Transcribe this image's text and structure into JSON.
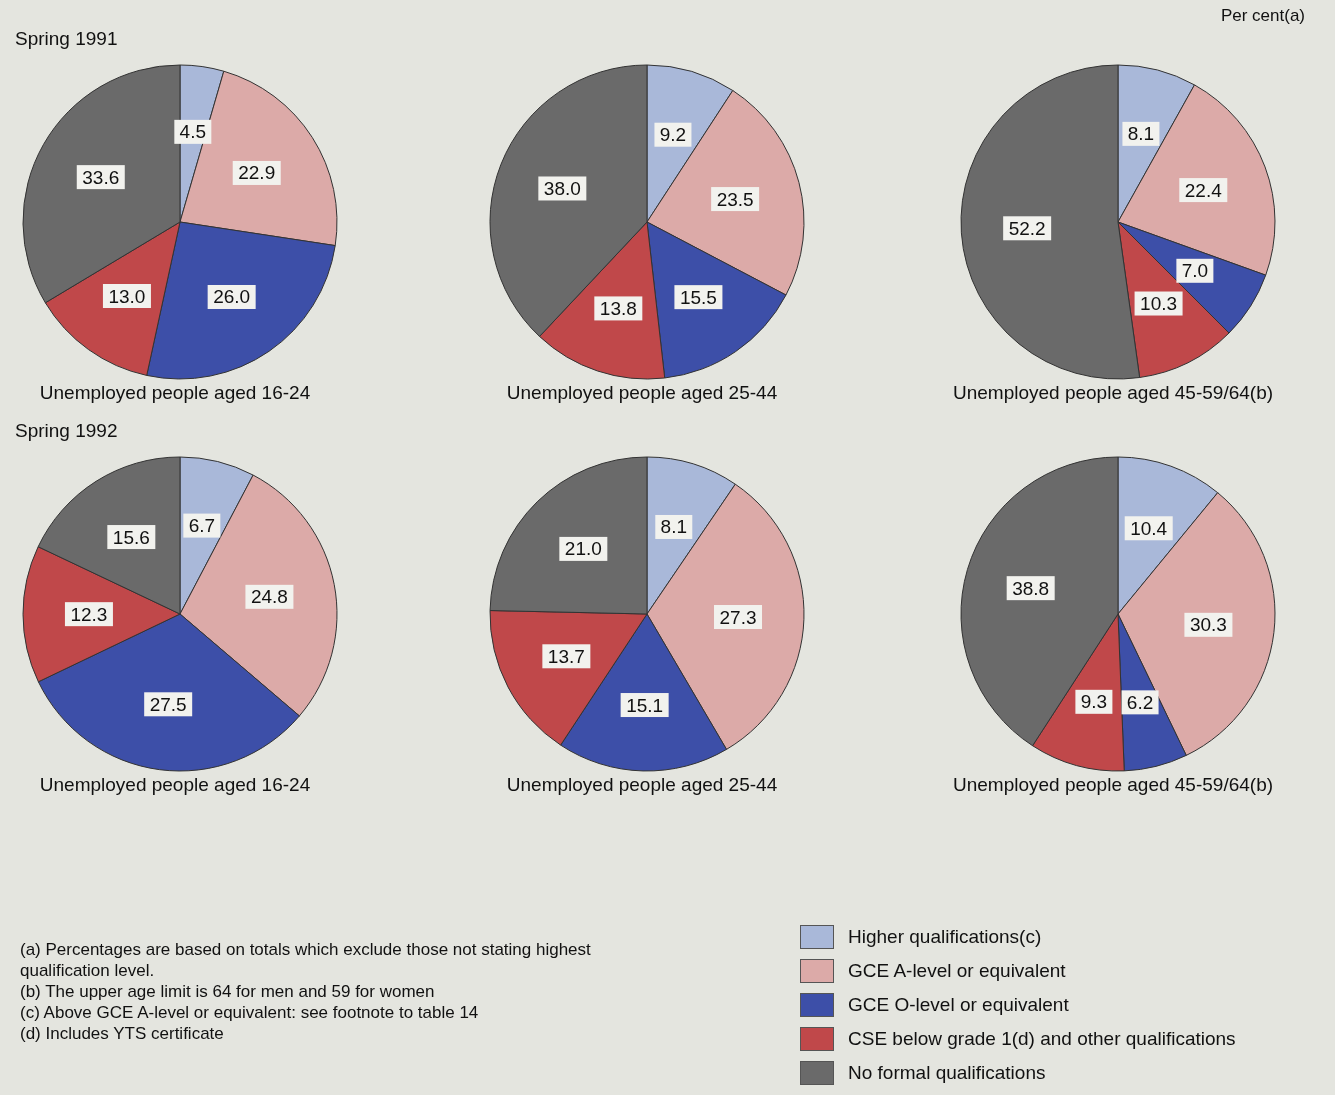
{
  "chart_data": [
    {
      "type": "pie",
      "subtitle": "Spring 1991",
      "title": "Unemployed people aged 16-24",
      "categories": [
        null,
        null,
        null,
        null,
        null
      ],
      "values": [
        4.5,
        22.9,
        26.0,
        13.0,
        33.6
      ],
      "value_labels": [
        "4.5",
        "22.9",
        "26.0",
        "13.0",
        "33.6"
      ],
      "colors": [
        "#a9b8d9",
        "#dcaaa8",
        "#3d4fa8",
        "#c0484a",
        "#6a6a6a"
      ]
    },
    {
      "type": "pie",
      "title": "Unemployed people aged 25-44",
      "categories": [
        null,
        null,
        null,
        null,
        null
      ],
      "values": [
        9.2,
        23.5,
        15.5,
        13.8,
        38.0
      ],
      "value_labels": [
        "9.2",
        "23.5",
        "15.5",
        "13.8",
        "38.0"
      ],
      "colors": [
        "#a9b8d9",
        "#dcaaa8",
        "#3d4fa8",
        "#c0484a",
        "#6a6a6a"
      ]
    },
    {
      "type": "pie",
      "title": "Unemployed people aged 45-59/64(b)",
      "annotations": [
        "Per cent(a)"
      ],
      "categories": [
        null,
        null,
        null,
        null,
        null
      ],
      "values": [
        8.1,
        22.4,
        7.0,
        10.3,
        52.2
      ],
      "value_labels": [
        "8.1",
        "22.4",
        "7.0",
        "10.3",
        "52.2"
      ],
      "colors": [
        "#a9b8d9",
        "#dcaaa8",
        "#3d4fa8",
        "#c0484a",
        "#6a6a6a"
      ]
    },
    {
      "type": "pie",
      "subtitle": "Spring 1992",
      "title": "Unemployed people aged 16-24",
      "annotations": [
        "(a) Percentages are based on totals which exclude those not stating highest qualification level.",
        "(b) The upper age limit is 64 for men and 59 for women",
        "(c) Above GCE A-level or equivalent: see footnote to table 14",
        "(d) Includes YTS certificate"
      ],
      "categories": [
        null,
        null,
        null,
        null,
        null
      ],
      "values": [
        6.7,
        24.8,
        27.5,
        12.3,
        15.6
      ],
      "value_labels": [
        "6.7",
        "24.8",
        "27.5",
        "12.3",
        "15.6"
      ],
      "colors": [
        "#a9b8d9",
        "#dcaaa8",
        "#3d4fa8",
        "#c0484a",
        "#6a6a6a"
      ]
    },
    {
      "type": "pie",
      "title": "Unemployed people aged 25-44",
      "categories": [
        null,
        null,
        null,
        null,
        null
      ],
      "values": [
        8.1,
        27.3,
        15.1,
        13.7,
        21.0
      ],
      "value_labels": [
        "8.1",
        "27.3",
        "15.1",
        "13.7",
        "21.0"
      ],
      "colors": [
        "#a9b8d9",
        "#dcaaa8",
        "#3d4fa8",
        "#c0484a",
        "#6a6a6a"
      ]
    },
    {
      "type": "pie",
      "title": "Unemployed people aged 45-59/64(b)",
      "legend": "bottom",
      "categories": [
        "Higher qualifications(c)",
        "GCE A-level or equivalent",
        "GCE O-level or equivalent",
        "CSE below grade 1(d) and other qualifications",
        "No formal qualifications"
      ],
      "values": [
        10.4,
        30.3,
        6.2,
        9.3,
        38.8
      ],
      "value_labels": [
        "10.4",
        "30.3",
        "6.2",
        "9.3",
        "38.8"
      ],
      "colors": [
        "#a9b8d9",
        "#dcaaa8",
        "#3d4fa8",
        "#c0484a",
        "#6a6a6a"
      ]
    }
  ]
}
